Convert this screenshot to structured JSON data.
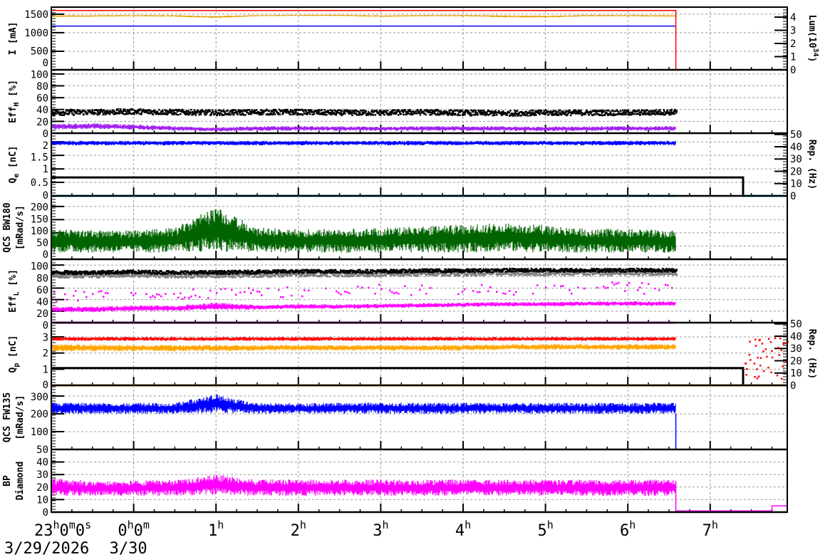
{
  "chart_data": {
    "type": "line",
    "x_axis": {
      "range": [
        "23:00",
        "07:56"
      ],
      "tick_labels": [
        {
          "t": "23:00",
          "h": "23",
          "m": "0",
          "s": "0",
          "date": "3/29/2026"
        },
        {
          "t": "00:00",
          "h": "0",
          "m": "0",
          "date": "3/30"
        },
        {
          "t": "01:00",
          "h": "1"
        },
        {
          "t": "02:00",
          "h": "2"
        },
        {
          "t": "03:00",
          "h": "3"
        },
        {
          "t": "04:00",
          "h": "4"
        },
        {
          "t": "05:00",
          "h": "5"
        },
        {
          "t": "06:00",
          "h": "6"
        },
        {
          "t": "07:00",
          "h": "7"
        }
      ],
      "unit_h": "h",
      "unit_m": "m",
      "unit_s": "s"
    },
    "grid": true,
    "x": [
      "23:00",
      "23:30",
      "00:00",
      "00:30",
      "01:00",
      "01:30",
      "02:00",
      "02:30",
      "03:00",
      "03:30",
      "04:00",
      "04:30",
      "05:00",
      "05:30",
      "06:00",
      "06:30",
      "06:35"
    ],
    "panels": [
      {
        "ylabel": {
          "main": "I [mA]"
        },
        "ylim": [
          0,
          1690
        ],
        "yticks": [
          0,
          500,
          1000,
          1500
        ],
        "right": {
          "label": {
            "main": "Lum(10",
            "sup": "34",
            "end": ")"
          },
          "ylim": [
            0,
            4.76
          ],
          "yticks": [
            0,
            1,
            2,
            3,
            4
          ]
        },
        "series": [
          {
            "type": "band",
            "color": "#e8a000",
            "low": [
              1420,
              1430,
              1440,
              1430,
              1395,
              1440,
              1450,
              1450,
              1425,
              1440,
              1440,
              1415,
              1405,
              1440,
              1440,
              1430,
              1430
            ],
            "high": [
              1470,
              1475,
              1480,
              1475,
              1450,
              1480,
              1485,
              1485,
              1470,
              1480,
              1480,
              1470,
              1460,
              1480,
              1480,
              1475,
              1475
            ]
          },
          {
            "type": "line",
            "color": "#0000ff",
            "xs": [
              "23:00",
              "06:35"
            ],
            "values": [
              1180,
              1180
            ]
          },
          {
            "type": "line",
            "axis": "right",
            "color": "#ff0000",
            "xs": [
              "23:00",
              "06:35",
              "06:35",
              "07:56"
            ],
            "values": [
              4.5,
              4.5,
              0,
              0
            ]
          }
        ]
      },
      {
        "ylabel": {
          "main": "Eff",
          "sub": "H",
          "end": " [%]"
        },
        "ylim": [
          0,
          107
        ],
        "yticks": [
          0,
          20,
          40,
          60,
          80,
          100
        ],
        "series": [
          {
            "type": "scatter",
            "color": "#000000",
            "low": [
              30,
              31,
              32,
              31,
              30,
              31,
              31,
              30,
              30,
              31,
              30,
              29,
              30,
              30,
              30,
              31,
              31
            ],
            "high": [
              40,
              40,
              41,
              40,
              39,
              40,
              40,
              39,
              39,
              40,
              39,
              38,
              39,
              39,
              39,
              40,
              40
            ]
          },
          {
            "type": "band",
            "color": "#a020f0",
            "low": [
              6,
              7,
              6,
              4,
              3,
              4,
              4,
              4,
              4,
              4,
              4,
              4,
              3,
              4,
              4,
              4,
              4
            ],
            "high": [
              16,
              17,
              15,
              12,
              10,
              12,
              12,
              12,
              11,
              12,
              12,
              12,
              11,
              12,
              12,
              12,
              12
            ]
          }
        ]
      },
      {
        "ylabel": {
          "main": "Q",
          "sub": "e",
          "end": " [nC]"
        },
        "ylim": [
          0,
          2.32
        ],
        "yticks": [
          0,
          0.5,
          1,
          1.5,
          2
        ],
        "right": {
          "label": {
            "main": "Rep. (Hz)"
          },
          "ylim": [
            0,
            51
          ],
          "yticks": [
            0,
            10,
            20,
            30,
            40,
            50
          ]
        },
        "series": [
          {
            "type": "band",
            "color": "#0000ff",
            "low": [
              1.87,
              1.87,
              1.87,
              1.87,
              1.87,
              1.87,
              1.87,
              1.87,
              1.87,
              1.87,
              1.87,
              1.87,
              1.87,
              1.87,
              1.87,
              1.87,
              1.87
            ],
            "high": [
              2.04,
              2.04,
              2.04,
              2.04,
              2.04,
              2.04,
              2.04,
              2.04,
              2.04,
              2.04,
              2.04,
              2.04,
              2.04,
              2.04,
              2.04,
              2.04,
              2.04
            ]
          },
          {
            "type": "line",
            "axis": "right",
            "color": "#000000",
            "width": 3,
            "xs": [
              "23:00",
              "07:24",
              "07:24",
              "07:56"
            ],
            "values": [
              15,
              15,
              0,
              0
            ]
          },
          {
            "type": "line",
            "color": "#00e5ee",
            "width": 3,
            "xs": [
              "23:00",
              "06:35"
            ],
            "values": [
              0,
              0
            ]
          },
          {
            "type": "line",
            "axis": "right",
            "color": "#00e5ee",
            "width": 3,
            "xs": [
              "07:24",
              "07:56"
            ],
            "values": [
              0,
              0
            ]
          }
        ]
      },
      {
        "ylabel": {
          "main": "QCS BW180",
          "line2": "[mRad/s]"
        },
        "ylim": [
          0,
          240
        ],
        "yticks": [
          0,
          50,
          100,
          150,
          200
        ],
        "series": [
          {
            "type": "band",
            "color": "#006400",
            "low": [
              25,
              25,
              25,
              25,
              30,
              25,
              25,
              25,
              25,
              25,
              25,
              30,
              25,
              25,
              25,
              25,
              25
            ],
            "high": [
              115,
              110,
              110,
              120,
              200,
              120,
              115,
              115,
              120,
              125,
              130,
              140,
              130,
              115,
              115,
              110,
              110
            ]
          }
        ]
      },
      {
        "ylabel": {
          "main": "Eff",
          "sub": "L",
          "end": " [%]"
        },
        "ylim": [
          0,
          110
        ],
        "yticks": [
          0,
          20,
          40,
          60,
          80,
          100
        ],
        "series": [
          {
            "type": "scatter",
            "color": "#808080",
            "low": [
              78,
              78,
              79,
              78,
              78,
              79,
              80,
              80,
              80,
              81,
              81,
              82,
              82,
              82,
              82,
              82,
              82
            ],
            "high": [
              86,
              86,
              87,
              86,
              86,
              87,
              88,
              88,
              88,
              89,
              89,
              90,
              90,
              90,
              90,
              90,
              90
            ]
          },
          {
            "type": "scatter",
            "color": "#000000",
            "low": [
              84,
              84,
              85,
              84,
              84,
              85,
              86,
              86,
              86,
              87,
              87,
              88,
              88,
              88,
              88,
              88,
              88
            ],
            "high": [
              90,
              90,
              91,
              90,
              90,
              91,
              92,
              92,
              92,
              93,
              93,
              94,
              94,
              94,
              94,
              94,
              94
            ]
          },
          {
            "type": "band",
            "color": "#ff00ff",
            "low": [
              18,
              18,
              20,
              20,
              22,
              22,
              24,
              24,
              25,
              26,
              27,
              28,
              28,
              29,
              29,
              29,
              29
            ],
            "high": [
              28,
              28,
              30,
              30,
              35,
              31,
              32,
              32,
              33,
              34,
              35,
              36,
              36,
              37,
              37,
              37,
              37
            ]
          },
          {
            "type": "sparse",
            "color": "#ff00ff",
            "low": [
              36,
              36,
              38,
              40,
              40,
              42,
              44,
              44,
              46,
              46,
              48,
              48,
              48,
              50,
              50,
              50,
              50
            ],
            "high": [
              55,
              55,
              58,
              58,
              60,
              60,
              62,
              62,
              66,
              66,
              68,
              68,
              68,
              70,
              70,
              70,
              70
            ]
          },
          {
            "type": "line",
            "color": "#ff00ff",
            "width": 3,
            "xs": [
              "23:00",
              "06:35"
            ],
            "values": [
              0,
              0
            ]
          }
        ]
      },
      {
        "ylabel": {
          "main": "Q",
          "sub": "p",
          "end": " [nC]"
        },
        "ylim": [
          0,
          3.88
        ],
        "yticks": [
          0,
          1,
          2,
          3
        ],
        "right": {
          "label": {
            "main": "Rep. (Hz)"
          },
          "ylim": [
            0,
            51
          ],
          "yticks": [
            0,
            10,
            20,
            30,
            40,
            50
          ]
        },
        "series": [
          {
            "type": "band",
            "color": "#ff0000",
            "low": [
              2.75,
              2.75,
              2.75,
              2.75,
              2.75,
              2.75,
              2.75,
              2.75,
              2.75,
              2.75,
              2.75,
              2.75,
              2.75,
              2.75,
              2.75,
              2.75,
              2.75
            ],
            "high": [
              3.0,
              3.0,
              3.0,
              3.0,
              3.0,
              3.0,
              3.0,
              3.0,
              3.0,
              3.0,
              3.0,
              3.0,
              3.0,
              3.0,
              3.0,
              3.0,
              3.0
            ]
          },
          {
            "type": "band",
            "color": "#ffa500",
            "low": [
              2.1,
              2.1,
              2.1,
              2.1,
              2.1,
              2.15,
              2.15,
              2.15,
              2.15,
              2.15,
              2.15,
              2.2,
              2.2,
              2.2,
              2.2,
              2.2,
              2.2
            ],
            "high": [
              2.55,
              2.55,
              2.5,
              2.5,
              2.5,
              2.5,
              2.5,
              2.5,
              2.5,
              2.5,
              2.5,
              2.55,
              2.55,
              2.55,
              2.55,
              2.55,
              2.55
            ]
          },
          {
            "type": "line",
            "axis": "right",
            "color": "#000000",
            "width": 3,
            "xs": [
              "23:00",
              "07:24",
              "07:24",
              "07:56"
            ],
            "values": [
              14,
              14,
              0,
              0
            ]
          },
          {
            "type": "line",
            "color": "#ffa500",
            "width": 3,
            "xs": [
              "23:00",
              "07:56"
            ],
            "values": [
              0,
              0
            ]
          },
          {
            "type": "burst",
            "axis": "right",
            "color": "#ff0000",
            "xs": [
              "07:25",
              "07:56"
            ],
            "low": 5,
            "high": 40
          }
        ]
      },
      {
        "ylabel": {
          "main": "QCS FW135",
          "line2": "[mRad/s]"
        },
        "ylim": [
          0,
          360
        ],
        "yticks": [
          100,
          200,
          300
        ],
        "series": [
          {
            "type": "band",
            "color": "#0000ff",
            "low": [
              200,
              200,
              200,
              200,
              205,
              200,
              200,
              200,
              200,
              200,
              200,
              200,
              200,
              200,
              200,
              200,
              200
            ],
            "high": [
              265,
              262,
              262,
              262,
              310,
              262,
              260,
              262,
              265,
              262,
              262,
              262,
              262,
              262,
              262,
              262,
              262
            ]
          },
          {
            "type": "line",
            "color": "#0000ff",
            "xs": [
              "06:35",
              "06:35",
              "07:56"
            ],
            "values": [
              200,
              0,
              0
            ]
          }
        ]
      },
      {
        "ylabel": {
          "main": "BP",
          "line2": "Diamond"
        },
        "ylim": [
          0,
          50
        ],
        "yticks": [
          0,
          10,
          20,
          30,
          40,
          50
        ],
        "series": [
          {
            "type": "band",
            "color": "#ff00ff",
            "low": [
              13,
              13,
              13,
              13,
              14,
              13,
              13,
              13,
              13,
              13,
              13,
              13,
              13,
              13,
              13,
              13,
              13
            ],
            "high": [
              27,
              25,
              25,
              26,
              30,
              26,
              26,
              26,
              26,
              26,
              26,
              26,
              26,
              26,
              26,
              26,
              26
            ]
          },
          {
            "type": "line",
            "color": "#ff00ff",
            "xs": [
              "06:35",
              "06:35",
              "07:45",
              "07:45",
              "07:56"
            ],
            "values": [
              25,
              1,
              1,
              5,
              5
            ]
          }
        ]
      }
    ]
  }
}
